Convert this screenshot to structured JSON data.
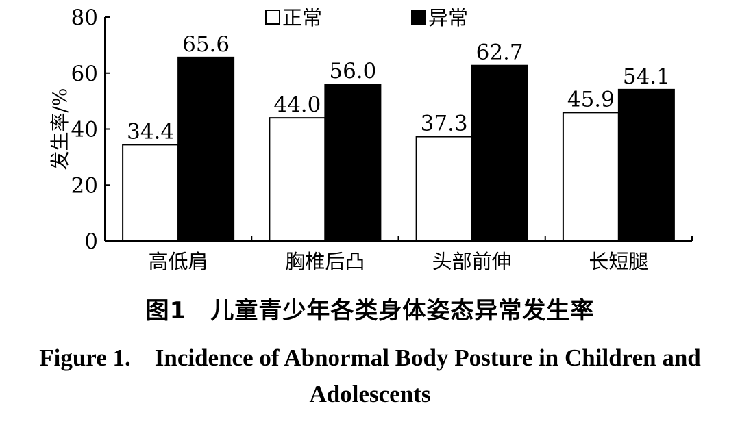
{
  "chart_data": {
    "type": "bar",
    "categories": [
      "高低肩",
      "胸椎后凸",
      "头部前伸",
      "长短腿"
    ],
    "series": [
      {
        "name": "正常",
        "values": [
          34.4,
          44.0,
          37.3,
          45.9
        ],
        "color": "#ffffff"
      },
      {
        "name": "异常",
        "values": [
          65.6,
          56.0,
          62.7,
          54.1
        ],
        "color": "#000000"
      }
    ],
    "value_labels": [
      [
        "34.4",
        "44.0",
        "37.3",
        "45.9"
      ],
      [
        "65.6",
        "56.0",
        "62.7",
        "54.1"
      ]
    ],
    "ylabel": "发生率/%",
    "xlabel": "",
    "ylim": [
      0,
      80
    ],
    "yticks": [
      "0",
      "20",
      "40",
      "60",
      "80"
    ],
    "legend_position": "top",
    "grid": false
  },
  "caption": {
    "cn": "图1　儿童青少年各类身体姿态异常发生率",
    "en_line1": "Figure 1.　Incidence of Abnormal Body Posture in Children and",
    "en_line2": "Adolescents"
  }
}
